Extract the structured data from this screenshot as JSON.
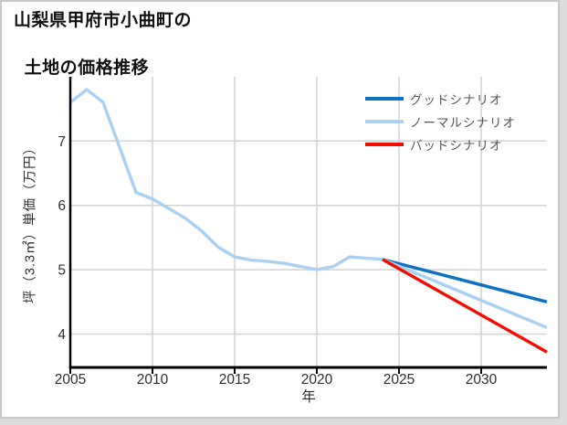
{
  "page": {
    "title_line1": "山梨県甲府市小曲町の",
    "title_line2": "土地の価格推移"
  },
  "chart_data": {
    "type": "line",
    "title": "山梨県甲府市小曲町の土地の価格推移",
    "xlabel": "年",
    "ylabel": "坪（3.3㎡）単価（万円）",
    "xlim": [
      2005,
      2034
    ],
    "ylim": [
      3.47,
      8.0
    ],
    "xticks": [
      2005,
      2010,
      2015,
      2020,
      2025,
      2030
    ],
    "yticks": [
      4,
      5,
      6,
      7
    ],
    "grid": true,
    "legend_position": "top-right",
    "colors": {
      "grid": "#d3d3d3",
      "axis": "#000000",
      "tick_text": "#2e2e2e",
      "legend_text": "#555555"
    },
    "series": [
      {
        "key": "history",
        "legend": null,
        "color": "#a9d1f4",
        "x": [
          2005,
          2006,
          2007,
          2008,
          2009,
          2010,
          2011,
          2012,
          2013,
          2014,
          2015,
          2016,
          2017,
          2018,
          2019,
          2020,
          2021,
          2022,
          2023,
          2024
        ],
        "y": [
          7.6,
          7.8,
          7.6,
          6.9,
          6.2,
          6.1,
          5.95,
          5.8,
          5.6,
          5.35,
          5.2,
          5.15,
          5.13,
          5.1,
          5.05,
          5.0,
          5.05,
          5.2,
          5.18,
          5.16
        ]
      },
      {
        "key": "good",
        "legend": "グッドシナリオ",
        "color": "#0d72c4",
        "x": [
          2024,
          2034
        ],
        "y": [
          5.16,
          4.5
        ]
      },
      {
        "key": "normal",
        "legend": "ノーマルシナリオ",
        "color": "#a9d1f4",
        "x": [
          2024,
          2034
        ],
        "y": [
          5.16,
          4.1
        ]
      },
      {
        "key": "bad",
        "legend": "バッドシナリオ",
        "color": "#f20d00",
        "x": [
          2024,
          2034
        ],
        "y": [
          5.16,
          3.72
        ]
      }
    ]
  }
}
